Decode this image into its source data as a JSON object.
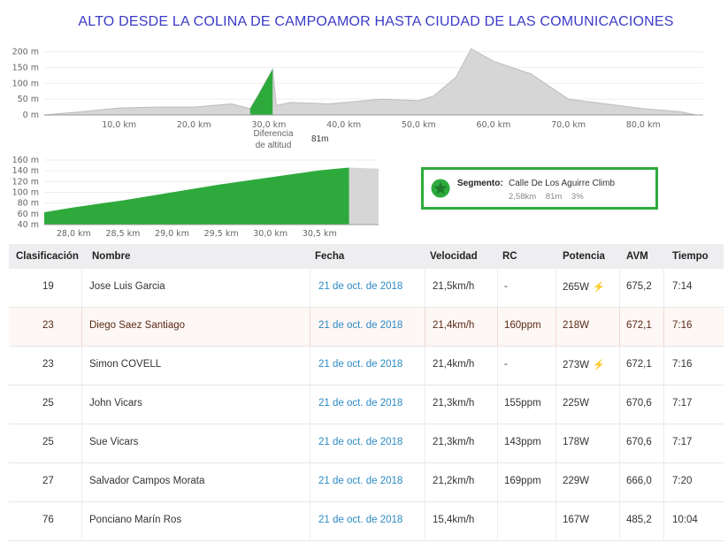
{
  "title": "ALTO DESDE LA COLINA DE CAMPOAMOR HASTA CIUDAD DE LAS COMUNICACIONES",
  "profile_chart": {
    "y_ticks": [
      "200 m",
      "150 m",
      "100 m",
      "50 m",
      "0 m"
    ],
    "x_ticks": [
      "10,0 km",
      "20,0 km",
      "30,0 km",
      "40,0 km",
      "50,0 km",
      "60,0 km",
      "70,0 km",
      "80,0 km"
    ],
    "elevation_difference_label": "Diferencia de altitud",
    "elevation_difference_value": "81m"
  },
  "segment_chart": {
    "y_ticks": [
      "160 m",
      "140 m",
      "120 m",
      "100 m",
      "80 m",
      "60 m",
      "40 m"
    ],
    "x_ticks": [
      "28,0 km",
      "28,5 km",
      "29,0 km",
      "29,5 km",
      "30,0 km",
      "30,5 km"
    ]
  },
  "chart_data": [
    {
      "type": "area",
      "x": [
        0,
        5,
        10,
        15,
        20,
        25,
        27.5,
        28.5,
        30.5,
        31,
        33,
        38,
        45,
        50,
        52,
        55,
        57,
        60,
        65,
        70,
        75,
        80,
        85,
        87
      ],
      "y": [
        0,
        10,
        22,
        25,
        25,
        35,
        20,
        60,
        145,
        30,
        40,
        35,
        50,
        45,
        60,
        120,
        210,
        170,
        130,
        50,
        35,
        20,
        10,
        0
      ],
      "xlim": [
        0,
        88
      ],
      "ylim": [
        0,
        210
      ]
    },
    {
      "type": "area",
      "x": [
        27.7,
        28.0,
        28.5,
        29.0,
        29.5,
        30.0,
        30.5,
        30.8
      ],
      "y": [
        63,
        72,
        85,
        100,
        115,
        128,
        141,
        146
      ],
      "xlim": [
        27.7,
        31.1
      ],
      "ylim": [
        40,
        160
      ]
    }
  ],
  "segment": {
    "label": "Segmento:",
    "name": "Calle De Los Aguirre Climb",
    "distance": "2,58km",
    "elevation": "81m",
    "grade": "3%",
    "accent": "#2eaa3d"
  },
  "table": {
    "headers": [
      "Clasificación",
      "Nombre",
      "Fecha",
      "Velocidad",
      "RC",
      "Potencia",
      "AVM",
      "Tiempo"
    ],
    "rows": [
      {
        "rank": "19",
        "name": "Jose Luis Garcia",
        "date": "21 de oct. de 2018",
        "speed": "21,5km/h",
        "hr": "-",
        "power": "265W",
        "avm": "675,2",
        "time": "7:14",
        "estimated": true
      },
      {
        "rank": "23",
        "name": "Diego Saez Santiago",
        "date": "21 de oct. de 2018",
        "speed": "21,4km/h",
        "hr": "160ppm",
        "power": "218W",
        "avm": "672,1",
        "time": "7:16",
        "estimated": false
      },
      {
        "rank": "23",
        "name": "Simon COVELL",
        "date": "21 de oct. de 2018",
        "speed": "21,4km/h",
        "hr": "-",
        "power": "273W",
        "avm": "672,1",
        "time": "7:16",
        "estimated": true
      },
      {
        "rank": "25",
        "name": "John Vicars",
        "date": "21 de oct. de 2018",
        "speed": "21,3km/h",
        "hr": "155ppm",
        "power": "225W",
        "avm": "670,6",
        "time": "7:17",
        "estimated": false
      },
      {
        "rank": "25",
        "name": "Sue Vicars",
        "date": "21 de oct. de 2018",
        "speed": "21,3km/h",
        "hr": "143ppm",
        "power": "178W",
        "avm": "670,6",
        "time": "7:17",
        "estimated": false
      },
      {
        "rank": "27",
        "name": "Salvador Campos Morata",
        "date": "21 de oct. de 2018",
        "speed": "21,2km/h",
        "hr": "169ppm",
        "power": "229W",
        "avm": "666,0",
        "time": "7:20",
        "estimated": false
      },
      {
        "rank": "76",
        "name": "Ponciano Marín Ros",
        "date": "21 de oct. de 2018",
        "speed": "15,4km/h",
        "hr": "",
        "power": "167W",
        "avm": "485,2",
        "time": "10:04",
        "estimated": false
      }
    ]
  }
}
